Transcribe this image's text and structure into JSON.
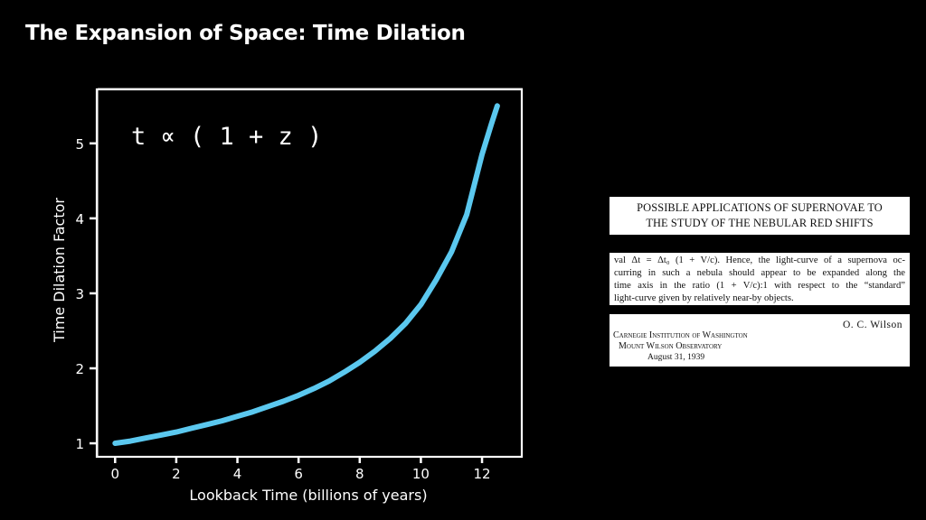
{
  "slide": {
    "title": "The Expansion of Space: Time Dilation"
  },
  "chart_data": {
    "type": "line",
    "title": "",
    "annotation": "t ∝ ( 1 + z )",
    "xlabel": "Lookback Time (billions of years)",
    "ylabel": "Time Dilation Factor",
    "xlim": [
      -0.6,
      13.3
    ],
    "ylim": [
      0.82,
      5.72
    ],
    "x_ticks": [
      0,
      2,
      4,
      6,
      8,
      10,
      12
    ],
    "y_ticks": [
      1,
      2,
      3,
      4,
      5
    ],
    "grid": false,
    "line_color": "#5bc8ef",
    "series": [
      {
        "x": [
          0,
          0.5,
          1,
          1.5,
          2,
          2.5,
          3,
          3.5,
          4,
          4.5,
          5,
          5.5,
          6,
          6.5,
          7,
          7.5,
          8,
          8.5,
          9,
          9.5,
          10,
          10.5,
          11,
          11.5,
          12,
          12.3,
          12.5
        ],
        "y": [
          1.0,
          1.03,
          1.07,
          1.11,
          1.15,
          1.2,
          1.25,
          1.3,
          1.36,
          1.42,
          1.49,
          1.56,
          1.64,
          1.73,
          1.83,
          1.95,
          2.08,
          2.23,
          2.4,
          2.6,
          2.85,
          3.18,
          3.55,
          4.05,
          4.85,
          5.25,
          5.5
        ]
      }
    ]
  },
  "clipping": {
    "heading_lines": [
      "POSSIBLE APPLICATIONS OF SUPERNOVAE TO",
      "THE STUDY OF THE NEBULAR RED SHIFTS"
    ],
    "body_lines": [
      "val Δt = Δt₀ (1 + V/c). Hence, the light-curve of a supernova oc-",
      "curring in such a nebula should appear to be expanded along the",
      "time axis in the ratio (1 + V/c):1 with respect to the “standard”",
      "light-curve given by relatively near-by objects."
    ],
    "author": "O. C. Wilson",
    "institution_line1": "Carnegie Institution of Washington",
    "institution_line2": "Mount Wilson Observatory",
    "date": "August 31, 1939"
  }
}
